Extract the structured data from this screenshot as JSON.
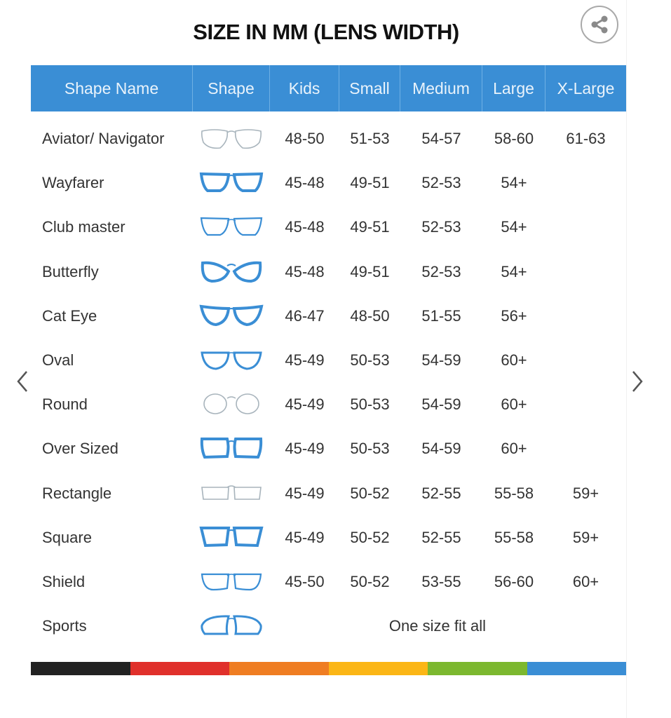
{
  "title": "SIZE IN MM (LENS WIDTH)",
  "share_icon": "share-icon",
  "nav": {
    "prev_icon": "chevron-left-icon",
    "next_icon": "chevron-right-icon"
  },
  "columns": [
    "Shape Name",
    "Shape",
    "Kids",
    "Small",
    "Medium",
    "Large",
    "X-Large"
  ],
  "rows": [
    {
      "name": "Aviator/ Navigator",
      "icon": "aviator",
      "sizes": [
        "48-50",
        "51-53",
        "54-57",
        "58-60",
        "61-63"
      ]
    },
    {
      "name": "Wayfarer",
      "icon": "wayfarer",
      "sizes": [
        "45-48",
        "49-51",
        "52-53",
        "54+",
        ""
      ]
    },
    {
      "name": "Club master",
      "icon": "clubmaster",
      "sizes": [
        "45-48",
        "49-51",
        "52-53",
        "54+",
        ""
      ]
    },
    {
      "name": "Butterfly",
      "icon": "butterfly",
      "sizes": [
        "45-48",
        "49-51",
        "52-53",
        "54+",
        ""
      ]
    },
    {
      "name": "Cat Eye",
      "icon": "cateye",
      "sizes": [
        "46-47",
        "48-50",
        "51-55",
        "56+",
        ""
      ]
    },
    {
      "name": "Oval",
      "icon": "oval",
      "sizes": [
        "45-49",
        "50-53",
        "54-59",
        "60+",
        ""
      ]
    },
    {
      "name": "Round",
      "icon": "round",
      "sizes": [
        "45-49",
        "50-53",
        "54-59",
        "60+",
        ""
      ]
    },
    {
      "name": "Over Sized",
      "icon": "oversized",
      "sizes": [
        "45-49",
        "50-53",
        "54-59",
        "60+",
        ""
      ]
    },
    {
      "name": "Rectangle",
      "icon": "rectangle",
      "sizes": [
        "45-49",
        "50-52",
        "52-55",
        "55-58",
        "59+"
      ]
    },
    {
      "name": "Square",
      "icon": "square",
      "sizes": [
        "45-49",
        "50-52",
        "52-55",
        "55-58",
        "59+"
      ]
    },
    {
      "name": "Shield",
      "icon": "shield",
      "sizes": [
        "45-50",
        "50-52",
        "53-55",
        "56-60",
        "60+"
      ]
    },
    {
      "name": "Sports",
      "icon": "sports",
      "sizes": [],
      "note": "One size fit all"
    }
  ],
  "colors": {
    "header": "#3a8ed5",
    "frame_blue": "#3a8ed5",
    "frame_gray": "#a8b4bc",
    "stripe": [
      "#222222",
      "#e0302b",
      "#ef7d22",
      "#fbb616",
      "#7cb82f",
      "#3a8ed5"
    ]
  }
}
